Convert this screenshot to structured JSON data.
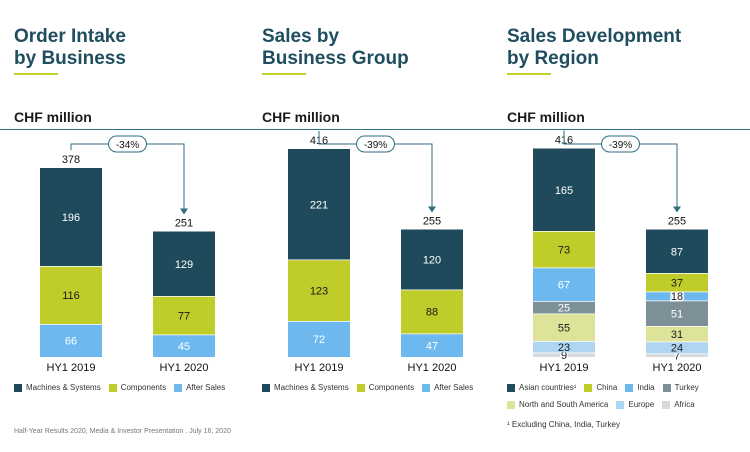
{
  "colors": {
    "dark": "#1f4a5c",
    "lime": "#bfcc2a",
    "blue": "#6db8ee",
    "grey": "#7d9098",
    "lightlime": "#dde49a",
    "lightblue": "#aed6f2",
    "lightgrey": "#d7d9db",
    "accent": "#c0d02c",
    "title": "#1f4e5f"
  },
  "panels": [
    {
      "title_line1": "Order Intake",
      "title_line2": "by Business",
      "unit": "CHF million"
    },
    {
      "title_line1": "Sales by",
      "title_line2": "Business Group",
      "unit": "CHF million"
    },
    {
      "title_line1": "Sales Development",
      "title_line2": "by Region",
      "unit": "CHF million"
    }
  ],
  "chart_data": [
    {
      "type": "bar",
      "stacked": true,
      "categories": [
        "HY1 2019",
        "HY1 2020"
      ],
      "series": [
        {
          "name": "After Sales",
          "values": [
            66,
            45
          ],
          "color_key": "blue"
        },
        {
          "name": "Components",
          "values": [
            116,
            77
          ],
          "color_key": "lime"
        },
        {
          "name": "Machines & Systems",
          "values": [
            196,
            129
          ],
          "color_key": "dark"
        }
      ],
      "totals": [
        "378",
        "251"
      ],
      "change_label": "-34%"
    },
    {
      "type": "bar",
      "stacked": true,
      "categories": [
        "HY1 2019",
        "HY1 2020"
      ],
      "series": [
        {
          "name": "After Sales",
          "values": [
            72,
            47
          ],
          "color_key": "blue"
        },
        {
          "name": "Components",
          "values": [
            123,
            88
          ],
          "color_key": "lime"
        },
        {
          "name": "Machines & Systems",
          "values": [
            221,
            120
          ],
          "color_key": "dark"
        }
      ],
      "totals": [
        "416",
        "255"
      ],
      "change_label": "-39%"
    },
    {
      "type": "bar",
      "stacked": true,
      "categories": [
        "HY1 2019",
        "HY1 2020"
      ],
      "series": [
        {
          "name": "Africa",
          "values": [
            9,
            7
          ],
          "color_key": "lightgrey"
        },
        {
          "name": "Europe",
          "values": [
            23,
            24
          ],
          "color_key": "lightblue"
        },
        {
          "name": "North and South America",
          "values": [
            55,
            31
          ],
          "color_key": "lightlime"
        },
        {
          "name": "Turkey",
          "values": [
            25,
            51
          ],
          "color_key": "grey"
        },
        {
          "name": "India",
          "values": [
            67,
            18
          ],
          "color_key": "blue"
        },
        {
          "name": "China",
          "values": [
            73,
            37
          ],
          "color_key": "lime"
        },
        {
          "name": "Asian countries¹",
          "values": [
            165,
            87
          ],
          "color_key": "dark"
        }
      ],
      "totals": [
        "416",
        "255"
      ],
      "change_label": "-39%"
    }
  ],
  "legends": [
    [
      {
        "label": "Machines & Systems",
        "color_key": "dark"
      },
      {
        "label": "Components",
        "color_key": "lime"
      },
      {
        "label": "After Sales",
        "color_key": "blue"
      }
    ],
    [
      {
        "label": "Machines & Systems",
        "color_key": "dark"
      },
      {
        "label": "Components",
        "color_key": "lime"
      },
      {
        "label": "After Sales",
        "color_key": "blue"
      }
    ],
    [
      {
        "label": "Asian countries¹",
        "color_key": "dark"
      },
      {
        "label": "China",
        "color_key": "lime"
      },
      {
        "label": "India",
        "color_key": "blue"
      },
      {
        "label": "Turkey",
        "color_key": "grey"
      },
      {
        "label": "North and South America",
        "color_key": "lightlime"
      },
      {
        "label": "Europe",
        "color_key": "lightblue"
      },
      {
        "label": "Africa",
        "color_key": "lightgrey"
      }
    ]
  ],
  "footnote": "¹ Excluding China, India, Turkey",
  "footer": "Half-Year Results 2020, Media & Investor Presentation . July 16, 2020"
}
